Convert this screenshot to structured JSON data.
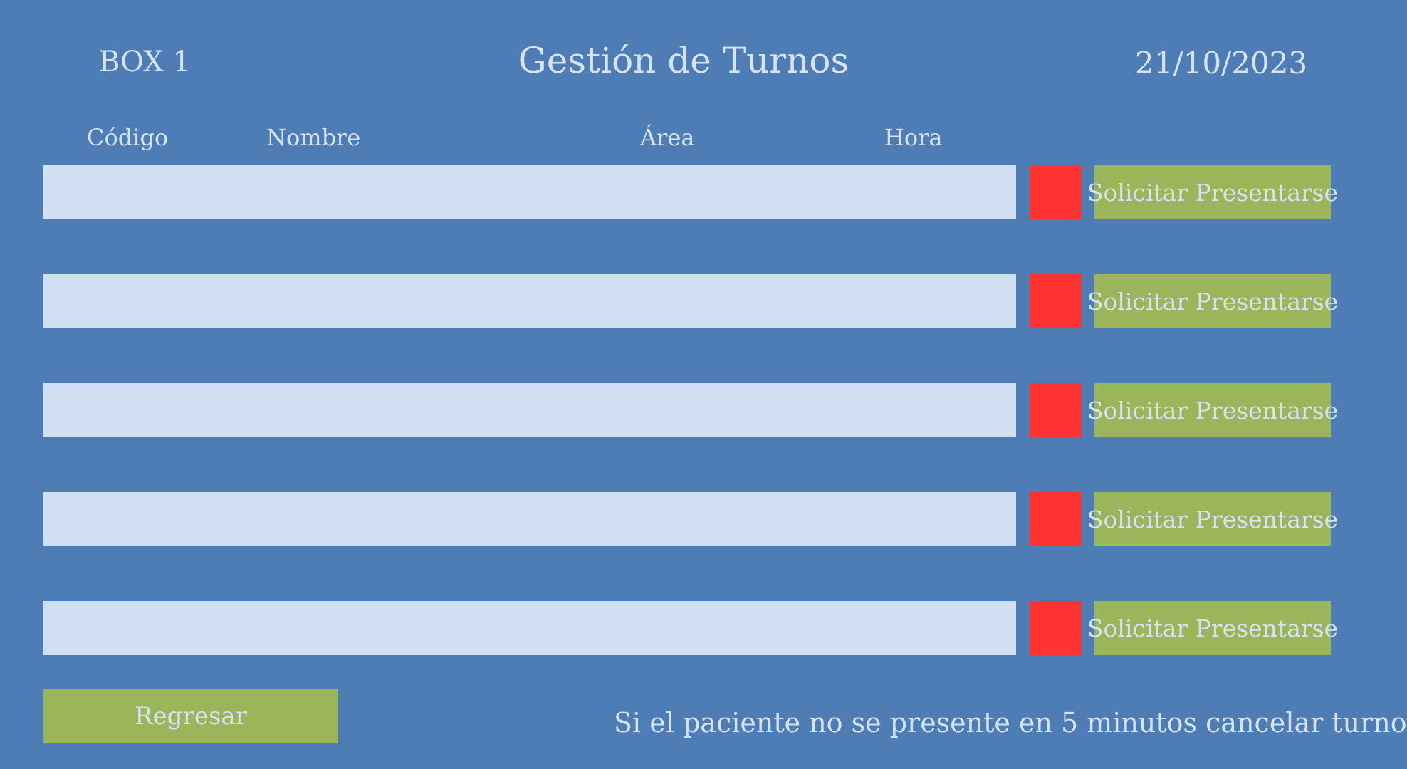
{
  "header": {
    "box": "BOX 1",
    "title": "Gestión de Turnos",
    "date": "21/10/2023"
  },
  "columns": {
    "codigo": "Código",
    "nombre": "Nombre",
    "area": "Área",
    "hora": "Hora"
  },
  "rows": [
    {
      "field_value": "",
      "status_color": "#ff3333",
      "button_label": "Solicitar Presentarse"
    },
    {
      "field_value": "",
      "status_color": "#ff3333",
      "button_label": "Solicitar Presentarse"
    },
    {
      "field_value": "",
      "status_color": "#ff3333",
      "button_label": "Solicitar Presentarse"
    },
    {
      "field_value": "",
      "status_color": "#ff3333",
      "button_label": "Solicitar Presentarse"
    },
    {
      "field_value": "",
      "status_color": "#ff3333",
      "button_label": "Solicitar Presentarse"
    }
  ],
  "footer": {
    "back_label": "Regresar",
    "notice": "Si el paciente no se presente en 5 minutos cancelar turno"
  },
  "colors": {
    "background": "#4e7db5",
    "field": "#d0dff2",
    "status": "#ff3333",
    "button": "#9bb55a",
    "text": "#d6e3f5"
  }
}
